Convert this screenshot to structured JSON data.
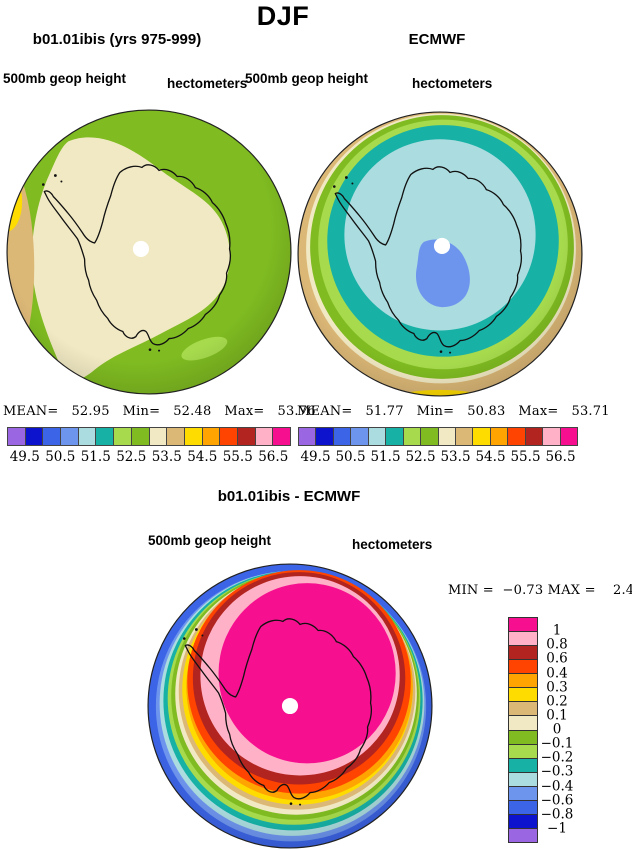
{
  "title": "DJF",
  "panels": [
    {
      "id": "model",
      "title": "b01.01ibis (yrs 975-999)",
      "field_label": "500mb geop height",
      "units_label": "hectometers",
      "stats_line": "MEAN=   52.95   Min=   52.48   Max=   53.76",
      "ticks": [
        "49.5",
        "50.5",
        "51.5",
        "52.5",
        "53.5",
        "54.5",
        "55.5",
        "56.5"
      ]
    },
    {
      "id": "reference",
      "title": "ECMWF",
      "field_label": "500mb geop height",
      "units_label": "hectometers",
      "stats_line": "MEAN=   51.77   Min=   50.83   Max=   53.71",
      "ticks": [
        "49.5",
        "50.5",
        "51.5",
        "52.5",
        "53.5",
        "54.5",
        "55.5",
        "56.5"
      ]
    }
  ],
  "diff_panel": {
    "title": "b01.01ibis - ECMWF",
    "field_label": "500mb geop height",
    "units_label": "hectometers",
    "stats_line": "MIN =  −0.73 MAX =    2.40",
    "legend_labels": [
      "1",
      "0.8",
      "0.6",
      "0.4",
      "0.3",
      "0.2",
      "0.1",
      "0",
      "−0.1",
      "−0.2",
      "−0.3",
      "−0.4",
      "−0.6",
      "−0.8",
      "−1"
    ]
  },
  "colors": {
    "palette16": [
      "#9a66e2",
      "#0d12cc",
      "#3c64e6",
      "#6e95ee",
      "#abdcdf",
      "#17b1a6",
      "#a7db4d",
      "#7fbb21",
      "#f1e9c3",
      "#dcb877",
      "#ffdc00",
      "#ffa400",
      "#ff4300",
      "#b22420",
      "#ffb1c7",
      "#f6108f"
    ],
    "palette16_reversed": [
      "#f6108f",
      "#ffb1c7",
      "#b22420",
      "#ff4300",
      "#ffa400",
      "#ffdc00",
      "#dcb877",
      "#f1e9c3",
      "#7fbb21",
      "#a7db4d",
      "#17b1a6",
      "#abdcdf",
      "#6e95ee",
      "#3c64e6",
      "#0d12cc",
      "#9a66e2"
    ],
    "coastline": "#111111",
    "pole_hole": "#ffffff"
  },
  "chart_data": [
    {
      "type": "heatmap",
      "subtype": "polar-stereographic-contour-map",
      "region": "Antarctica / Southern Hemisphere",
      "season": "DJF",
      "title": "b01.01ibis (yrs 975-999)",
      "variable": "500mb geop height",
      "units": "hectometers",
      "stats": {
        "mean": 52.95,
        "min": 52.48,
        "max": 53.76
      },
      "contour_interval": 0.5,
      "labeled_levels": [
        49.5,
        50.5,
        51.5,
        52.5,
        53.5,
        54.5,
        55.5,
        56.5
      ],
      "n_color_bands": 16,
      "legend_position": "bottom"
    },
    {
      "type": "heatmap",
      "subtype": "polar-stereographic-contour-map",
      "region": "Antarctica / Southern Hemisphere",
      "season": "DJF",
      "title": "ECMWF",
      "variable": "500mb geop height",
      "units": "hectometers",
      "stats": {
        "mean": 51.77,
        "min": 50.83,
        "max": 53.71
      },
      "contour_interval": 0.5,
      "labeled_levels": [
        49.5,
        50.5,
        51.5,
        52.5,
        53.5,
        54.5,
        55.5,
        56.5
      ],
      "n_color_bands": 16,
      "legend_position": "bottom"
    },
    {
      "type": "heatmap",
      "subtype": "polar-stereographic-contour-map",
      "region": "Antarctica / Southern Hemisphere",
      "season": "DJF",
      "title": "b01.01ibis - ECMWF",
      "variable": "500mb geop height",
      "units": "hectometers",
      "stats": {
        "min": -0.73,
        "max": 2.4
      },
      "labeled_levels": [
        -1,
        -0.8,
        -0.6,
        -0.4,
        -0.3,
        -0.2,
        -0.1,
        0,
        0.1,
        0.2,
        0.3,
        0.4,
        0.6,
        0.8,
        1
      ],
      "n_color_bands": 16,
      "legend_position": "right"
    }
  ]
}
